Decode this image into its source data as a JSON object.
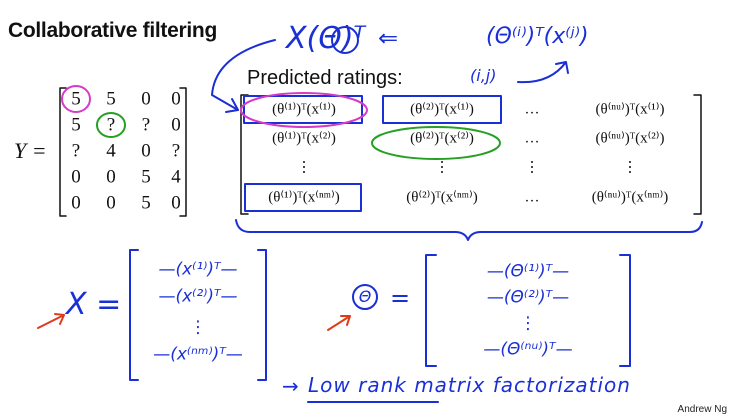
{
  "header": {
    "title": "Collaborative filtering"
  },
  "ratings": {
    "label": "Y =",
    "rows": [
      [
        "5",
        "5",
        "0",
        "0"
      ],
      [
        "5",
        "?",
        "?",
        "0"
      ],
      [
        "?",
        "4",
        "0",
        "?"
      ],
      [
        "0",
        "0",
        "5",
        "4"
      ],
      [
        "0",
        "0",
        "5",
        "0"
      ]
    ]
  },
  "predicted": {
    "title": "Predicted ratings:",
    "rows": [
      [
        "(θ⁽¹⁾)ᵀ(x⁽¹⁾)",
        "(θ⁽²⁾)ᵀ(x⁽¹⁾)",
        "…",
        "(θ⁽ⁿᵘ⁾)ᵀ(x⁽¹⁾)"
      ],
      [
        "(θ⁽¹⁾)ᵀ(x⁽²⁾)",
        "(θ⁽²⁾)ᵀ(x⁽²⁾)",
        "…",
        "(θ⁽ⁿᵘ⁾)ᵀ(x⁽²⁾)"
      ],
      [
        "⋮",
        "⋮",
        "⋮",
        "⋮"
      ],
      [
        "(θ⁽¹⁾)ᵀ(x⁽ⁿᵐ⁾)",
        "(θ⁽²⁾)ᵀ(x⁽ⁿᵐ⁾)",
        "…",
        "(θ⁽ⁿᵘ⁾)ᵀ(x⁽ⁿᵐ⁾)"
      ]
    ]
  },
  "annotations": {
    "x_theta_t": "X(Θ)ᵀ",
    "arrow_left": "⇐",
    "theta_x": "(Θ⁽ⁱ⁾)ᵀ(x⁽ʲ⁾)",
    "ij": "(i,j)"
  },
  "x_matrix": {
    "label": "X =",
    "rows": [
      "—(x⁽¹⁾)ᵀ—",
      "—(x⁽²⁾)ᵀ—",
      "⋮",
      "—(x⁽ⁿᵐ⁾)ᵀ—"
    ]
  },
  "theta_matrix": {
    "symbol": "Θ",
    "equals": "=",
    "rows": [
      "—(Θ⁽¹⁾)ᵀ—",
      "—(Θ⁽²⁾)ᵀ—",
      "⋮",
      "—(Θ⁽ⁿᵘ⁾)ᵀ—"
    ]
  },
  "footnote": {
    "arrow": "→",
    "text": "Low rank matrix factorization"
  },
  "footer": {
    "credit": "Andrew Ng"
  }
}
